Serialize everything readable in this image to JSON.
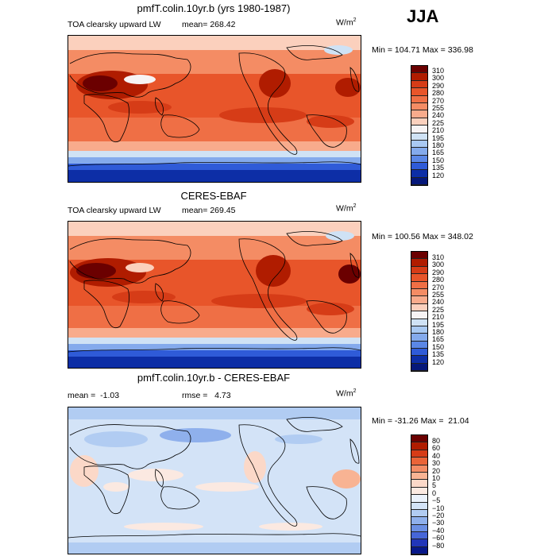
{
  "season": "JJA",
  "panels": [
    {
      "title": "pmfT.colin.10yr.b (yrs 1980-1987)",
      "variable": "TOA clearsky upward LW",
      "mean_label": "mean=",
      "mean_value": "268.42",
      "units": "W/m",
      "units_sup": "2",
      "minmax": "Min = 104.71 Max = 336.98",
      "levels": [
        "310",
        "300",
        "290",
        "280",
        "270",
        "255",
        "240",
        "225",
        "210",
        "195",
        "180",
        "165",
        "150",
        "135",
        "120"
      ]
    },
    {
      "title": "CERES-EBAF",
      "variable": "TOA clearsky upward LW",
      "mean_label": "mean=",
      "mean_value": "269.45",
      "units": "W/m",
      "units_sup": "2",
      "minmax": "Min = 100.56 Max = 348.02",
      "levels": [
        "310",
        "300",
        "290",
        "280",
        "270",
        "255",
        "240",
        "225",
        "210",
        "195",
        "180",
        "165",
        "150",
        "135",
        "120"
      ]
    },
    {
      "title": "pmfT.colin.10yr.b - CERES-EBAF",
      "mean_text": "mean =  -1.03",
      "rmse_text": "rmse =   4.73",
      "units": "W/m",
      "units_sup": "2",
      "minmax": "Min = -31.26 Max =  21.04",
      "levels": [
        "80",
        "60",
        "40",
        "30",
        "20",
        "10",
        "5",
        "0",
        "−5",
        "−10",
        "−20",
        "−30",
        "−40",
        "−60",
        "−80"
      ]
    }
  ],
  "colors": {
    "abs_scale": [
      "#6b0000",
      "#b01c00",
      "#d63c17",
      "#e8552a",
      "#ef6f45",
      "#f48c64",
      "#f8ab8c",
      "#fbd0bd",
      "#f7f3f4",
      "#cfe2f5",
      "#a9c9f2",
      "#84aaec",
      "#5b87e6",
      "#2f5bd8",
      "#0d2ea6",
      "#06187a"
    ],
    "diff_scale": [
      "#6b0000",
      "#b01c00",
      "#d63c17",
      "#ea6438",
      "#f38c65",
      "#f8b393",
      "#fbd8c8",
      "#fbe9e1",
      "#eaf1fb",
      "#d3e3f7",
      "#b1ccf2",
      "#8fb0ec",
      "#6b8fe4",
      "#4666d8",
      "#2236b9",
      "#07188a"
    ]
  }
}
